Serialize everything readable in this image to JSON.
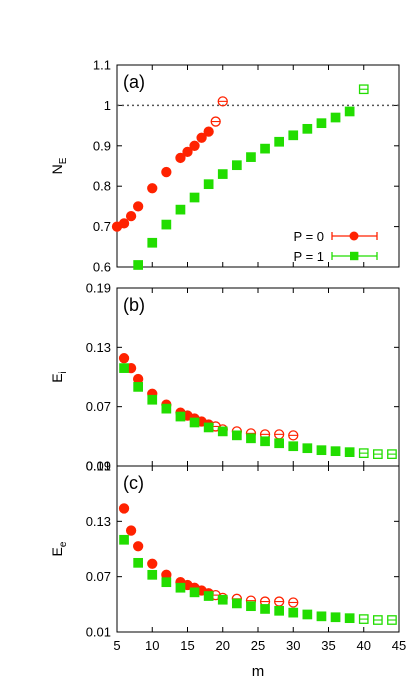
{
  "chart_data": [
    {
      "type": "scatter",
      "panel_label": "(a)",
      "ylabel": "N",
      "ylabel_sub": "E",
      "xlim": [
        5,
        45
      ],
      "ylim": [
        0.6,
        1.1
      ],
      "yticks": [
        "0.6",
        "0.7",
        "0.8",
        "0.9",
        "1",
        "1.1"
      ],
      "yticks_values": [
        0.6,
        0.7,
        0.8,
        0.9,
        1.0,
        1.1
      ],
      "reference_line": 1.0,
      "legend_position": "bottom-right",
      "series": [
        {
          "name": "P = 0",
          "color": "#ff2200",
          "marker": "circle",
          "filled": {
            "x": [
              5,
              6,
              7,
              8,
              10,
              12,
              14,
              15,
              16,
              17,
              18
            ],
            "y": [
              0.7,
              0.708,
              0.726,
              0.75,
              0.795,
              0.835,
              0.87,
              0.885,
              0.9,
              0.92,
              0.935
            ]
          },
          "open": {
            "x": [
              19,
              20
            ],
            "y": [
              0.96,
              1.01
            ]
          }
        },
        {
          "name": "P = 1",
          "color": "#22dd00",
          "marker": "square",
          "filled": {
            "x": [
              8,
              10,
              12,
              14,
              16,
              18,
              20,
              22,
              24,
              26,
              28,
              30,
              32,
              34,
              36,
              38
            ],
            "y": [
              0.605,
              0.66,
              0.705,
              0.742,
              0.772,
              0.805,
              0.83,
              0.852,
              0.872,
              0.893,
              0.91,
              0.926,
              0.942,
              0.956,
              0.97,
              0.985
            ]
          },
          "open": {
            "x": [
              40
            ],
            "y": [
              1.04
            ]
          }
        }
      ]
    },
    {
      "type": "scatter",
      "panel_label": "(b)",
      "ylabel": "E",
      "ylabel_sub": "i",
      "xlim": [
        5,
        45
      ],
      "ylim": [
        0.01,
        0.19
      ],
      "yticks": [
        "0.01",
        "0.07",
        "0.13",
        "0.19"
      ],
      "yticks_values": [
        0.01,
        0.07,
        0.13,
        0.19
      ],
      "series": [
        {
          "name": "P = 0",
          "color": "#ff2200",
          "marker": "circle",
          "filled": {
            "x": [
              6,
              7,
              8,
              10,
              12,
              14,
              15,
              16,
              17,
              18
            ],
            "y": [
              0.119,
              0.109,
              0.098,
              0.083,
              0.072,
              0.064,
              0.061,
              0.058,
              0.055,
              0.052
            ]
          },
          "open": {
            "x": [
              19,
              20,
              22,
              24,
              26,
              28,
              30
            ],
            "y": [
              0.05,
              0.047,
              0.045,
              0.043,
              0.042,
              0.042,
              0.041
            ]
          }
        },
        {
          "name": "P = 1",
          "color": "#22dd00",
          "marker": "square",
          "filled": {
            "x": [
              6,
              8,
              10,
              12,
              14,
              16,
              18,
              20,
              22,
              24,
              26,
              28,
              30,
              32,
              34,
              36,
              38
            ],
            "y": [
              0.109,
              0.09,
              0.077,
              0.068,
              0.06,
              0.054,
              0.049,
              0.045,
              0.041,
              0.038,
              0.035,
              0.033,
              0.03,
              0.028,
              0.026,
              0.025,
              0.024
            ]
          },
          "open": {
            "x": [
              40,
              42,
              44
            ],
            "y": [
              0.023,
              0.022,
              0.022
            ]
          }
        }
      ]
    },
    {
      "type": "scatter",
      "panel_label": "(c)",
      "ylabel": "E",
      "ylabel_sub": "e",
      "xlabel": "m",
      "xlim": [
        5,
        45
      ],
      "xticks": [
        "5",
        "10",
        "15",
        "20",
        "25",
        "30",
        "35",
        "40",
        "45"
      ],
      "xticks_values": [
        5,
        10,
        15,
        20,
        25,
        30,
        35,
        40,
        45
      ],
      "ylim": [
        0.01,
        0.19
      ],
      "yticks": [
        "0.01",
        "0.07",
        "0.13",
        "0.19"
      ],
      "yticks_values": [
        0.01,
        0.07,
        0.13,
        0.19
      ],
      "series": [
        {
          "name": "P = 0",
          "color": "#ff2200",
          "marker": "circle",
          "filled": {
            "x": [
              6,
              7,
              8,
              10,
              12,
              14,
              15,
              16,
              17,
              18
            ],
            "y": [
              0.144,
              0.12,
              0.103,
              0.084,
              0.072,
              0.064,
              0.061,
              0.058,
              0.055,
              0.052
            ]
          },
          "open": {
            "x": [
              19,
              20,
              22,
              24,
              26,
              28,
              30
            ],
            "y": [
              0.05,
              0.047,
              0.046,
              0.044,
              0.043,
              0.043,
              0.042
            ]
          }
        },
        {
          "name": "P = 1",
          "color": "#22dd00",
          "marker": "square",
          "filled": {
            "x": [
              6,
              8,
              10,
              12,
              14,
              16,
              18,
              20,
              22,
              24,
              26,
              28,
              30,
              32,
              34,
              36,
              38
            ],
            "y": [
              0.11,
              0.085,
              0.072,
              0.064,
              0.058,
              0.053,
              0.049,
              0.045,
              0.041,
              0.038,
              0.035,
              0.033,
              0.031,
              0.029,
              0.027,
              0.026,
              0.025
            ]
          },
          "open": {
            "x": [
              40,
              42,
              44
            ],
            "y": [
              0.024,
              0.023,
              0.023
            ]
          }
        }
      ]
    }
  ]
}
